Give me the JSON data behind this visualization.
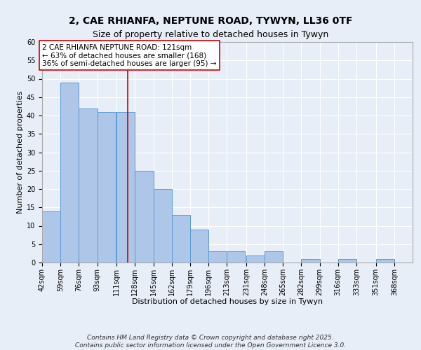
{
  "title1": "2, CAE RHIANFA, NEPTUNE ROAD, TYWYN, LL36 0TF",
  "title2": "Size of property relative to detached houses in Tywyn",
  "xlabel": "Distribution of detached houses by size in Tywyn",
  "ylabel": "Number of detached properties",
  "bin_edges": [
    42,
    59,
    76,
    93,
    111,
    128,
    145,
    162,
    179,
    196,
    213,
    231,
    248,
    265,
    282,
    299,
    316,
    333,
    351,
    368,
    385
  ],
  "bar_heights": [
    14,
    49,
    42,
    41,
    41,
    25,
    20,
    13,
    9,
    3,
    3,
    2,
    3,
    0,
    1,
    0,
    1,
    0,
    1,
    0
  ],
  "bar_color": "#aec6e8",
  "bar_edgecolor": "#5b9bd5",
  "vline_x": 121,
  "vline_color": "#cc0000",
  "annotation_text": "2 CAE RHIANFA NEPTUNE ROAD: 121sqm\n← 63% of detached houses are smaller (168)\n36% of semi-detached houses are larger (95) →",
  "annotation_box_edgecolor": "#cc0000",
  "annotation_box_facecolor": "#ffffff",
  "ylim": [
    0,
    60
  ],
  "yticks": [
    0,
    5,
    10,
    15,
    20,
    25,
    30,
    35,
    40,
    45,
    50,
    55,
    60
  ],
  "footer_text": "Contains HM Land Registry data © Crown copyright and database right 2025.\nContains public sector information licensed under the Open Government Licence 3.0.",
  "bg_color": "#e8eef7",
  "grid_color": "#ffffff",
  "title1_fontsize": 10,
  "title2_fontsize": 9,
  "xlabel_fontsize": 8,
  "ylabel_fontsize": 8,
  "tick_fontsize": 7,
  "annotation_fontsize": 7.5,
  "footer_fontsize": 6.5
}
